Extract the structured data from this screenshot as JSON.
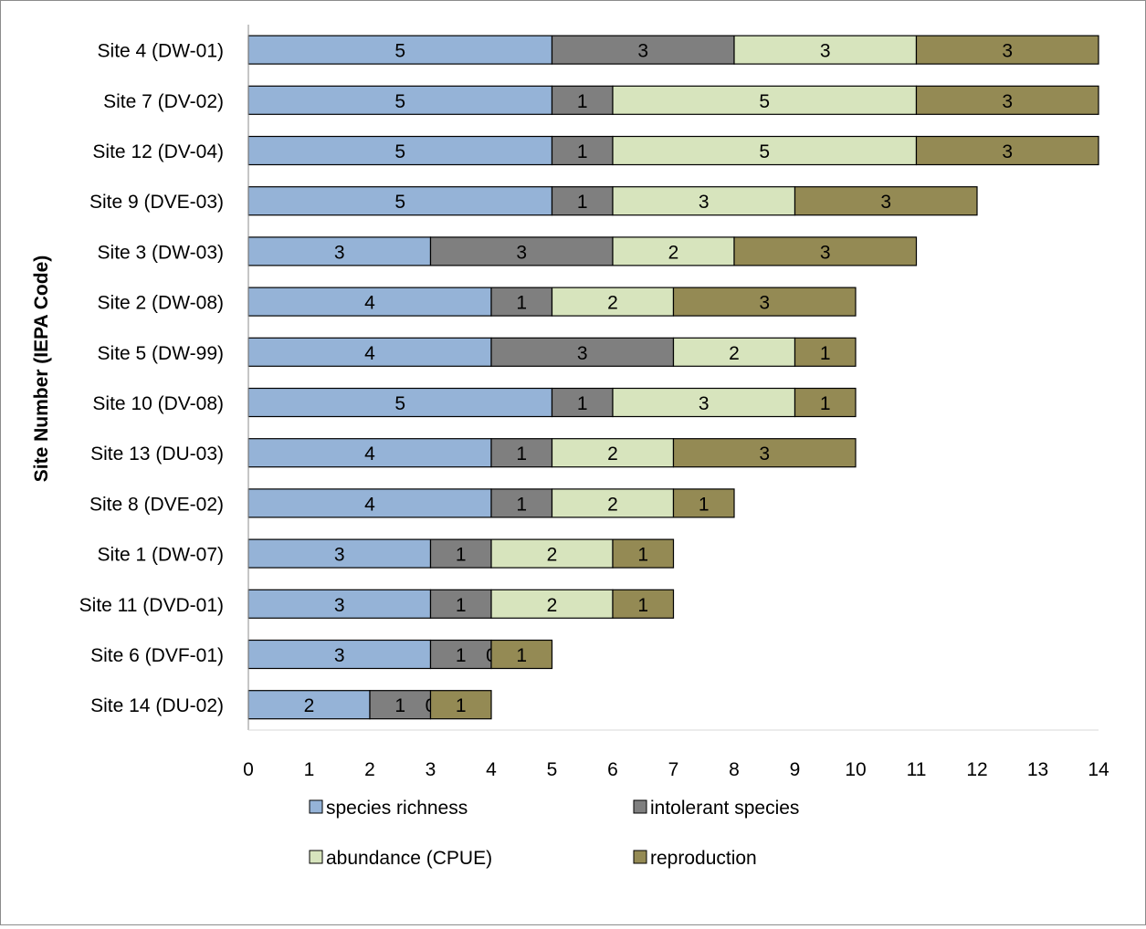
{
  "chart_data": {
    "type": "bar",
    "orientation": "horizontal",
    "stacked": true,
    "title": "",
    "xlabel": "",
    "ylabel": "Site Number (IEPA Code)",
    "xlim": [
      0,
      14
    ],
    "x_ticks": [
      "0",
      "1",
      "2",
      "3",
      "4",
      "5",
      "6",
      "7",
      "8",
      "9",
      "10",
      "11",
      "12",
      "13",
      "14"
    ],
    "grid": false,
    "legend_position": "bottom",
    "categories": [
      "Site 4 (DW-01)",
      "Site 7 (DV-02)",
      "Site 12 (DV-04)",
      "Site 9 (DVE-03)",
      "Site 3 (DW-03)",
      "Site 2 (DW-08)",
      "Site 5 (DW-99)",
      "Site 10 (DV-08)",
      "Site 13 (DU-03)",
      "Site 8 (DVE-02)",
      "Site 1 (DW-07)",
      "Site 11 (DVD-01)",
      "Site 6 (DVF-01)",
      "Site 14 (DU-02)"
    ],
    "series": [
      {
        "name": "species richness",
        "color": "#95b3d7",
        "values": [
          5,
          5,
          5,
          5,
          3,
          4,
          4,
          5,
          4,
          4,
          3,
          3,
          3,
          2
        ]
      },
      {
        "name": "intolerant species",
        "color": "#7f7f7f",
        "values": [
          3,
          1,
          1,
          1,
          3,
          1,
          3,
          1,
          1,
          1,
          1,
          1,
          1,
          1
        ]
      },
      {
        "name": "abundance (CPUE)",
        "color": "#d7e4bd",
        "values": [
          3,
          5,
          5,
          3,
          2,
          2,
          2,
          3,
          2,
          2,
          2,
          2,
          0,
          0
        ]
      },
      {
        "name": "reproduction",
        "color": "#948a54",
        "values": [
          3,
          3,
          3,
          3,
          3,
          3,
          1,
          1,
          3,
          1,
          1,
          1,
          1,
          1
        ]
      }
    ]
  }
}
